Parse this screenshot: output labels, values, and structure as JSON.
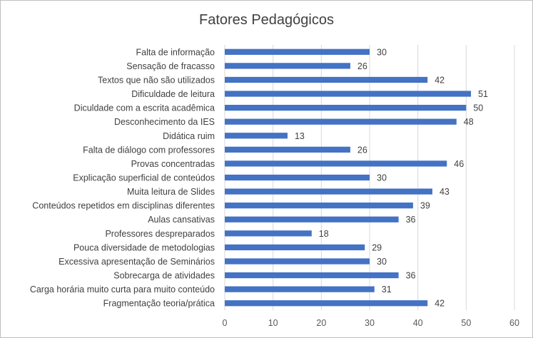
{
  "chart_data": {
    "type": "bar",
    "orientation": "horizontal",
    "title": "Fatores Pedagógicos",
    "xlabel": "",
    "ylabel": "",
    "xlim": [
      0,
      60
    ],
    "x_ticks": [
      "0",
      "10",
      "20",
      "30",
      "40",
      "50",
      "60"
    ],
    "grid": "vertical",
    "legend": "none",
    "bar_color": "#4472C4",
    "categories": [
      "Falta de informação",
      "Sensação de fracasso",
      "Textos que não são utilizados",
      "Dificuldade de leitura",
      "Diculdade com a escrita acadêmica",
      "Desconhecimento da IES",
      "Didática ruim",
      "Falta de diálogo com professores",
      "Provas concentradas",
      "Explicação superficial de conteúdos",
      "Muita leitura de Slides",
      "Conteúdos repetidos em disciplinas diferentes",
      "Aulas cansativas",
      "Professores despreparados",
      "Pouca diversidade de metodologias",
      "Excessiva apresentação de Seminários",
      "Sobrecarga de atividades",
      "Carga horária muito curta para muito conteúdo",
      "Fragmentação teoria/prática"
    ],
    "values": [
      30,
      26,
      42,
      51,
      50,
      48,
      13,
      26,
      46,
      30,
      43,
      39,
      36,
      18,
      29,
      30,
      36,
      31,
      42
    ]
  }
}
